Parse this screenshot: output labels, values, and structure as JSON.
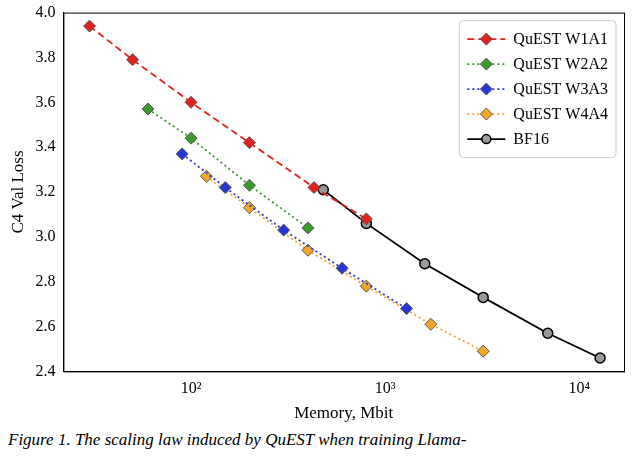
{
  "chart_data": {
    "type": "line",
    "caption": "Figure 1. The scaling law induced by QuEST when training Llama-",
    "x_label": "Memory, Mbit",
    "y_label": "C4 Val Loss",
    "log": "x",
    "grid": false,
    "legend": "upper right",
    "xlim": [
      22,
      17000
    ],
    "xticks": [
      {
        "value": 100,
        "label": "10²"
      },
      {
        "value": 1000,
        "label": "10³"
      },
      {
        "value": 10000,
        "label": "10⁴"
      }
    ],
    "ylim": [
      2.4,
      4.0
    ],
    "yticks": [
      2.4,
      2.6,
      2.8,
      {
        "value": 3,
        "label": "3.0"
      },
      3.2,
      3.4,
      3.6,
      3.8,
      {
        "value": 4,
        "label": "4.0"
      }
    ],
    "series": [
      {
        "name": "QuEST W1A1",
        "color": "#e3201b",
        "marker": "diamond",
        "line_style": "dashed",
        "x": [
          30,
          50,
          100,
          200,
          430,
          800
        ],
        "values": [
          3.94,
          3.79,
          3.6,
          3.42,
          3.22,
          3.08
        ]
      },
      {
        "name": "QuEST W2A2",
        "color": "#3a9a2c",
        "marker": "diamond",
        "line_style": "dotted",
        "x": [
          60,
          100,
          200,
          400
        ],
        "values": [
          3.57,
          3.44,
          3.23,
          3.04
        ]
      },
      {
        "name": "QuEST W3A3",
        "color": "#2538d6",
        "marker": "diamond",
        "line_style": "dotted",
        "x": [
          90,
          150,
          300,
          600,
          1290
        ],
        "values": [
          3.37,
          3.22,
          3.03,
          2.86,
          2.68
        ]
      },
      {
        "name": "QuEST W4A4",
        "color": "#f5a623",
        "marker": "diamond",
        "line_style": "dotted",
        "x": [
          120,
          200,
          400,
          800,
          1720,
          3200
        ],
        "values": [
          3.27,
          3.13,
          2.94,
          2.78,
          2.61,
          2.49
        ]
      },
      {
        "name": "BF16",
        "color": "#000000",
        "marker": "circle",
        "line_style": "solid",
        "x": [
          480,
          800,
          1600,
          3200,
          6880,
          12800
        ],
        "values": [
          3.21,
          3.06,
          2.88,
          2.73,
          2.57,
          2.46
        ]
      }
    ]
  }
}
